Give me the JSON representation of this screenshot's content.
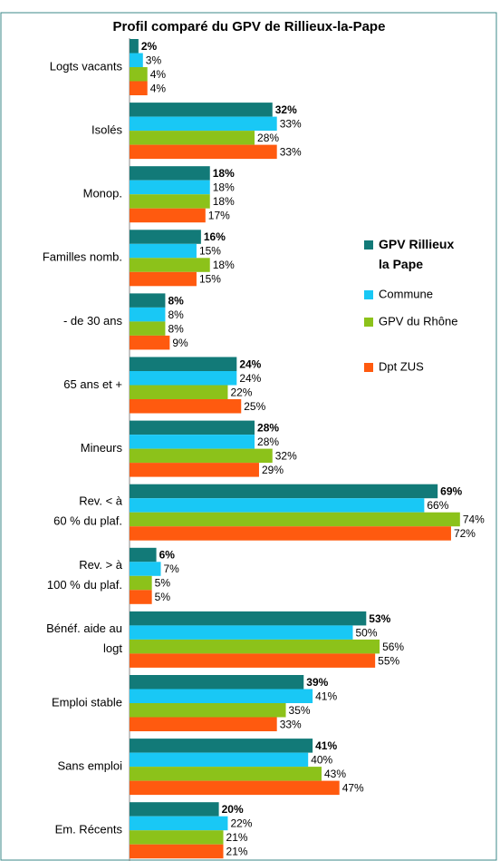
{
  "chart_data": {
    "type": "hbar",
    "title": "Profil comparé du GPV de Rillieux-la-Pape",
    "categories": [
      "Logts vacants",
      "Isolés",
      "Monop.",
      "Familles nomb.",
      "- de 30 ans",
      "65 ans et +",
      "Mineurs",
      "Rev. < à\n60 % du plaf.",
      "Rev. > à\n100 % du plaf.",
      "Bénéf. aide au\nlogt",
      "Emploi stable",
      "Sans emploi",
      "Em. Récents"
    ],
    "series": [
      {
        "name": "GPV Rillieux\nla Pape",
        "color": "#127a78",
        "values": [
          2,
          32,
          18,
          16,
          8,
          24,
          28,
          69,
          6,
          53,
          39,
          41,
          20
        ],
        "value_labels": [
          "2%",
          "32%",
          "18%",
          "16%",
          "8%",
          "24%",
          "28%",
          "69%",
          "6%",
          "53%",
          "39%",
          "41%",
          "20%"
        ]
      },
      {
        "name": "Commune",
        "color": "#19c8f5",
        "values": [
          3,
          33,
          18,
          15,
          8,
          24,
          28,
          66,
          7,
          50,
          41,
          40,
          22
        ],
        "value_labels": [
          "3%",
          "33%",
          "18%",
          "15%",
          "8%",
          "24%",
          "28%",
          "66%",
          "7%",
          "50%",
          "41%",
          "40%",
          "22%"
        ]
      },
      {
        "name": "GPV du Rhône",
        "color": "#8cc21a",
        "values": [
          4,
          28,
          18,
          18,
          8,
          22,
          32,
          74,
          5,
          56,
          35,
          43,
          21
        ],
        "value_labels": [
          "4%",
          "28%",
          "18%",
          "18%",
          "8%",
          "22%",
          "32%",
          "74%",
          "5%",
          "56%",
          "35%",
          "43%",
          "21%"
        ]
      },
      {
        "name": "Dpt ZUS",
        "color": "#ff5a0f",
        "values": [
          4,
          33,
          17,
          15,
          9,
          25,
          29,
          72,
          5,
          55,
          33,
          47,
          21
        ],
        "value_labels": [
          "4%",
          "33%",
          "17%",
          "15%",
          "9%",
          "25%",
          "29%",
          "72%",
          "5%",
          "55%",
          "33%",
          "47%",
          "21%"
        ]
      }
    ]
  }
}
